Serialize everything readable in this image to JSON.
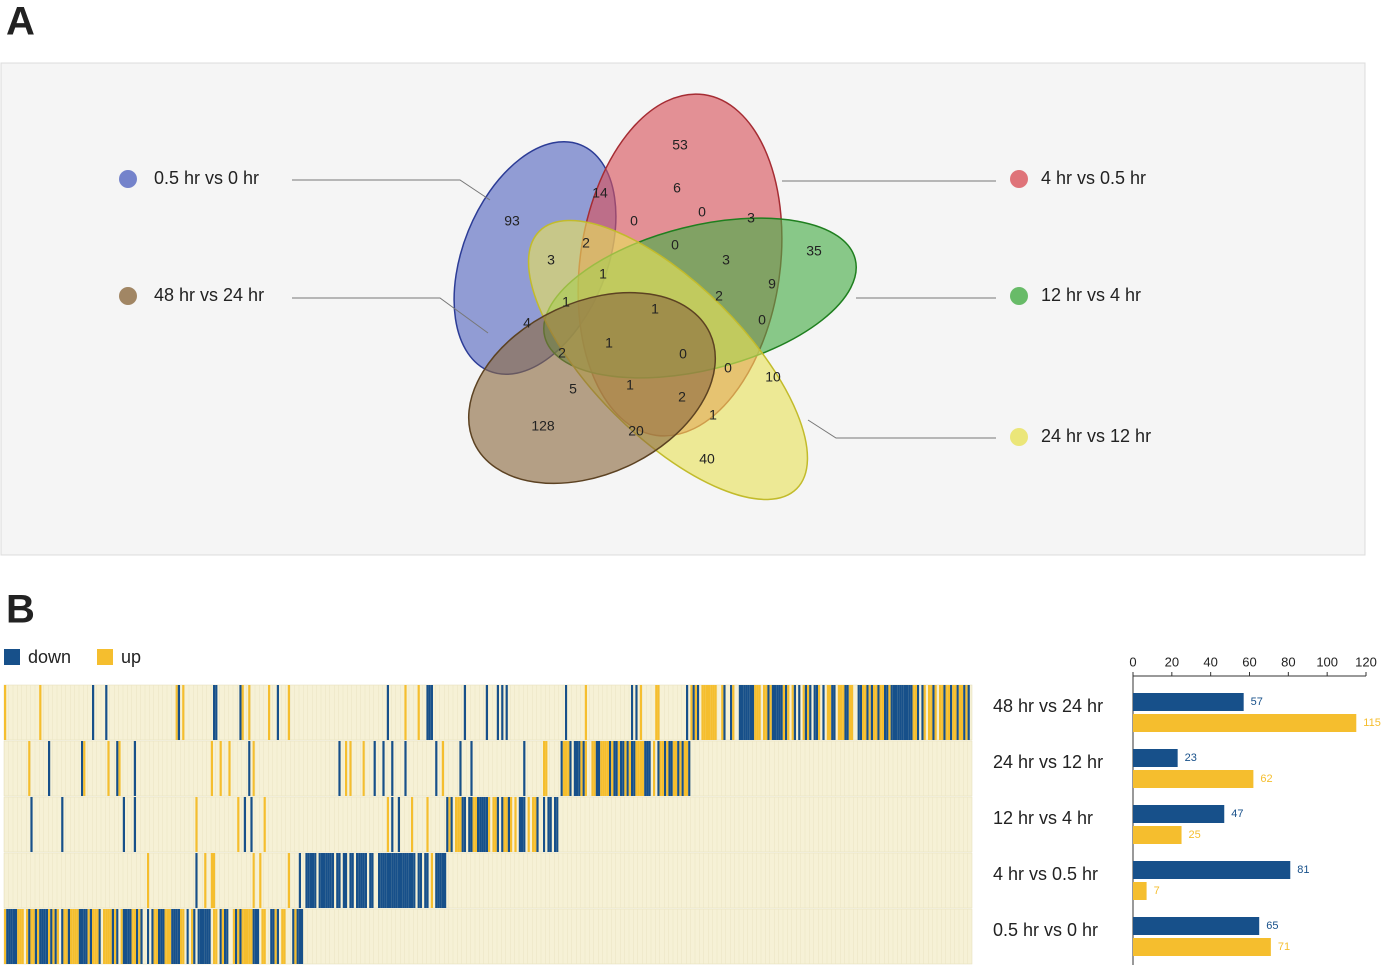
{
  "panel_a": {
    "label": "A",
    "chart_data": {
      "type": "venn",
      "sets": [
        {
          "name": "0.5 hr vs 0 hr",
          "color": "#5466c0"
        },
        {
          "name": "4 hr vs 0.5 hr",
          "color": "#d9525a"
        },
        {
          "name": "12 hr vs 4 hr",
          "color": "#45ad45"
        },
        {
          "name": "24 hr vs 12 hr",
          "color": "#e8e25a"
        },
        {
          "name": "48 hr vs 24 hr",
          "color": "#8c6a40"
        }
      ],
      "regions": [
        53,
        14,
        6,
        0,
        0,
        3,
        35,
        93,
        2,
        0,
        3,
        1,
        3,
        9,
        1,
        1,
        2,
        0,
        4,
        1,
        2,
        0,
        0,
        10,
        5,
        1,
        2,
        1,
        128,
        20,
        40
      ]
    }
  },
  "panel_b": {
    "label": "B",
    "chart_data": {
      "type": "bar",
      "orientation": "horizontal",
      "categories": [
        "48 hr vs 24 hr",
        "24 hr vs 12 hr",
        "12 hr vs 4 hr",
        "4 hr vs 0.5 hr",
        "0.5 hr vs 0 hr"
      ],
      "series": [
        {
          "name": "down",
          "color": "#17508a",
          "values": [
            57,
            23,
            47,
            81,
            65
          ]
        },
        {
          "name": "up",
          "color": "#f5be2e",
          "values": [
            115,
            62,
            25,
            7,
            71
          ]
        }
      ],
      "xlim": [
        0,
        120
      ],
      "xticks": [
        0,
        20,
        40,
        60,
        80,
        100,
        120
      ]
    }
  }
}
